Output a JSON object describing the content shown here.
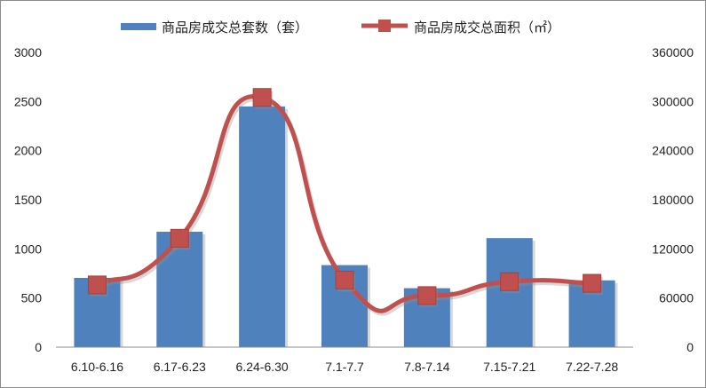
{
  "chart_data": {
    "type": "bar+line",
    "categories": [
      "6.10-6.16",
      "6.17-6.23",
      "6.24-6.30",
      "7.1-7.7",
      "7.8-7.14",
      "7.15-7.21",
      "7.22-7.28"
    ],
    "series": [
      {
        "name": "商品房成交总套数（套）",
        "type": "bar",
        "axis": "left",
        "color": "#4f81bd",
        "values": [
          705,
          1175,
          2450,
          835,
          600,
          1110,
          680
        ]
      },
      {
        "name": "商品房成交总面积（㎡）",
        "type": "line",
        "axis": "right",
        "color": "#c0504d",
        "values": [
          76000,
          133000,
          305000,
          82000,
          63000,
          80000,
          78000
        ]
      }
    ],
    "y_left": {
      "min": 0,
      "max": 3000,
      "step": 500,
      "ticks": [
        "0",
        "500",
        "1000",
        "1500",
        "2000",
        "2500",
        "3000"
      ]
    },
    "y_right": {
      "min": 0,
      "max": 360000,
      "step": 60000,
      "ticks": [
        "0",
        "60000",
        "120000",
        "180000",
        "240000",
        "300000",
        "360000"
      ]
    },
    "grid": false,
    "legend": "top"
  }
}
